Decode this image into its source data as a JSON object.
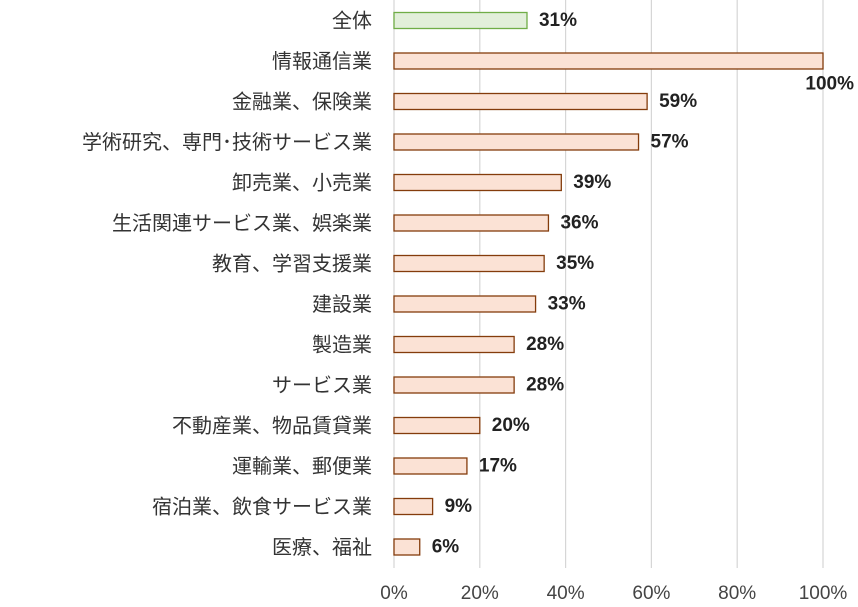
{
  "chart_data": {
    "type": "bar",
    "orientation": "horizontal",
    "categories": [
      "全体",
      "情報通信業",
      "金融業、保険業",
      "学術研究、専門･技術サービス業",
      "卸売業、小売業",
      "生活関連サービス業、娯楽業",
      "教育、学習支援業",
      "建設業",
      "製造業",
      "サービス業",
      "不動産業、物品賃貸業",
      "運輸業、郵便業",
      "宿泊業、飲食サービス業",
      "医療、福祉"
    ],
    "values": [
      31,
      100,
      59,
      57,
      39,
      36,
      35,
      33,
      28,
      28,
      20,
      17,
      9,
      6
    ],
    "value_labels": [
      "31%",
      "100%",
      "59%",
      "57%",
      "39%",
      "36%",
      "35%",
      "33%",
      "28%",
      "28%",
      "20%",
      "17%",
      "9%",
      "6%"
    ],
    "highlight_index": 0,
    "xlim": [
      0,
      100
    ],
    "x_ticks": [
      "0%",
      "20%",
      "40%",
      "60%",
      "80%",
      "100%"
    ],
    "grid": true,
    "colors": {
      "highlight_fill": "#e2efda",
      "highlight_stroke": "#70ad47",
      "bar_fill": "#fbe2d5",
      "bar_stroke": "#843c0c",
      "grid": "#d6d6d6",
      "text": "#333333"
    }
  }
}
